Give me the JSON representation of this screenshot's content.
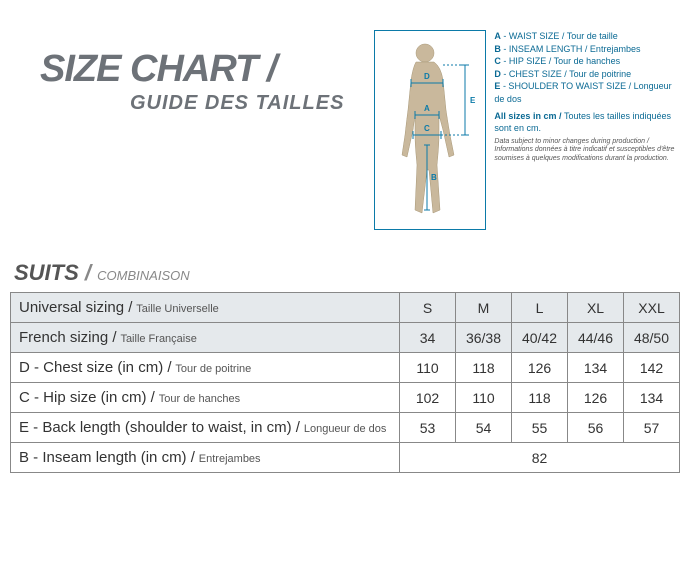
{
  "title": {
    "main": "SIZE CHART",
    "slash": "/",
    "sub": "GUIDE DES TAILLES"
  },
  "legend": {
    "items": [
      {
        "code": "A",
        "en": "WAIST SIZE",
        "fr": "Tour de taille"
      },
      {
        "code": "B",
        "en": "INSEAM LENGTH",
        "fr": "Entrejambes"
      },
      {
        "code": "C",
        "en": "HIP SIZE",
        "fr": "Tour de hanches"
      },
      {
        "code": "D",
        "en": "CHEST SIZE",
        "fr": "Tour de poitrine"
      },
      {
        "code": "E",
        "en": "SHOULDER TO WAIST SIZE",
        "fr": "Longueur de dos"
      }
    ],
    "note_en": "All sizes in cm",
    "note_fr": "Toutes les tailles indiquées sont en cm.",
    "fineprint": "Data subject to minor changes during production / Informations données à titre indicatif et susceptibles d'être soumises à quelques modifications durant la production."
  },
  "diagram": {
    "figure_color": "#c9b89c",
    "line_color": "#0b7aa8",
    "labels": {
      "D": "D",
      "A": "A",
      "C": "C",
      "B": "B",
      "E": "E"
    }
  },
  "section": {
    "title": "SUITS",
    "slash": "/",
    "sub": "COMBINAISON"
  },
  "table": {
    "header_bg": "#e5e9ec",
    "border_color": "#888888",
    "sizes": [
      "S",
      "M",
      "L",
      "XL",
      "XXL"
    ],
    "rows": [
      {
        "label_en": "Universal sizing",
        "label_fr": "Taille Universelle",
        "values": [
          "S",
          "M",
          "L",
          "XL",
          "XXL"
        ],
        "header": true
      },
      {
        "label_en": "French sizing",
        "label_fr": "Taille Française",
        "values": [
          "34",
          "36/38",
          "40/42",
          "44/46",
          "48/50"
        ],
        "header": true
      },
      {
        "label_en": "D - Chest size (in cm)",
        "label_fr": "Tour de poitrine",
        "values": [
          "110",
          "118",
          "126",
          "134",
          "142"
        ]
      },
      {
        "label_en": "C - Hip size (in cm)",
        "label_fr": "Tour de hanches",
        "values": [
          "102",
          "110",
          "118",
          "126",
          "134"
        ]
      },
      {
        "label_en": "E - Back length (shoulder to waist, in cm)",
        "label_fr": "Longueur de dos",
        "values": [
          "53",
          "54",
          "55",
          "56",
          "57"
        ]
      },
      {
        "label_en": "B - Inseam length (in cm)",
        "label_fr": "Entrejambes",
        "span_value": "82"
      }
    ]
  }
}
